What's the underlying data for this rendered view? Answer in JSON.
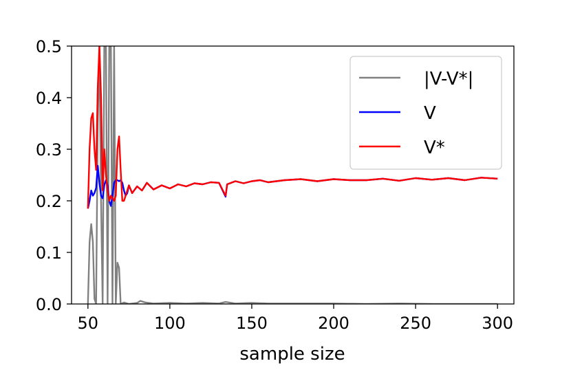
{
  "chart_data": {
    "type": "line",
    "title": "",
    "xlabel": "sample size",
    "ylabel": "",
    "xlim": [
      40,
      310
    ],
    "ylim": [
      0,
      0.5
    ],
    "xticks": [
      50,
      100,
      150,
      200,
      250,
      300
    ],
    "yticks": [
      0.0,
      0.1,
      0.2,
      0.3,
      0.4,
      0.5
    ],
    "xtick_labels": [
      "50",
      "100",
      "150",
      "200",
      "250",
      "300"
    ],
    "ytick_labels": [
      "0.0",
      "0.1",
      "0.2",
      "0.3",
      "0.4",
      "0.5"
    ],
    "grid": false,
    "legend_position": "top-right",
    "series": [
      {
        "name": "|V-V*|",
        "color": "#808080",
        "x": [
          50,
          51,
          52,
          53,
          54,
          55,
          56,
          57,
          58,
          59,
          60,
          61,
          62,
          63,
          64,
          65,
          66,
          67,
          68,
          69,
          70,
          72,
          75,
          80,
          82,
          85,
          90,
          100,
          110,
          120,
          130,
          134,
          140,
          150,
          160,
          170,
          180,
          190,
          200,
          220,
          240,
          260,
          280,
          300
        ],
        "values": [
          0.0,
          0.12,
          0.155,
          0.12,
          0.01,
          0.0,
          0.35,
          0.5,
          0.2,
          0.0,
          0.5,
          0.5,
          0.0,
          0.5,
          0.5,
          0.0,
          0.5,
          0.0,
          0.08,
          0.07,
          0.0,
          0.003,
          0.0,
          0.002,
          0.006,
          0.003,
          0.001,
          0.002,
          0.001,
          0.002,
          0.001,
          0.004,
          0.001,
          0.002,
          0.001,
          0.001,
          0.001,
          0.001,
          0.001,
          0.0,
          0.001,
          0.0,
          0.0,
          0.0
        ]
      },
      {
        "name": "V",
        "color": "#0000ff",
        "x": [
          50,
          51,
          52,
          53,
          54,
          55,
          56,
          57,
          58,
          59,
          60,
          61,
          62,
          63,
          64,
          65,
          66,
          67,
          68,
          69,
          70,
          71,
          72,
          73,
          74,
          75,
          77,
          80,
          83,
          86,
          90,
          95,
          100,
          105,
          110,
          115,
          120,
          125,
          130,
          134,
          135,
          140,
          145,
          150,
          155,
          160,
          170,
          180,
          190,
          200,
          210,
          220,
          230,
          240,
          250,
          260,
          270,
          280,
          290,
          300
        ],
        "values": [
          0.185,
          0.2,
          0.22,
          0.21,
          0.215,
          0.225,
          0.268,
          0.235,
          0.21,
          0.205,
          0.23,
          0.24,
          0.23,
          0.2,
          0.19,
          0.21,
          0.235,
          0.24,
          0.24,
          0.238,
          0.24,
          0.235,
          0.22,
          0.21,
          0.215,
          0.23,
          0.215,
          0.228,
          0.22,
          0.235,
          0.222,
          0.23,
          0.224,
          0.232,
          0.228,
          0.234,
          0.232,
          0.236,
          0.235,
          0.208,
          0.232,
          0.238,
          0.234,
          0.238,
          0.24,
          0.236,
          0.24,
          0.242,
          0.238,
          0.242,
          0.24,
          0.24,
          0.243,
          0.239,
          0.244,
          0.241,
          0.244,
          0.24,
          0.245,
          0.243
        ]
      },
      {
        "name": "V*",
        "color": "#ff0000",
        "x": [
          50,
          51,
          52,
          53,
          54,
          55,
          56,
          57,
          58,
          59,
          60,
          61,
          62,
          63,
          64,
          65,
          66,
          67,
          68,
          69,
          70,
          71,
          72,
          73,
          74,
          75,
          77,
          80,
          83,
          86,
          90,
          95,
          100,
          105,
          110,
          115,
          120,
          125,
          130,
          134,
          135,
          140,
          145,
          150,
          155,
          160,
          170,
          180,
          190,
          200,
          210,
          220,
          230,
          240,
          250,
          260,
          270,
          280,
          290,
          300
        ],
        "values": [
          0.185,
          0.3,
          0.36,
          0.37,
          0.3,
          0.26,
          0.42,
          0.5,
          0.4,
          0.22,
          0.3,
          0.25,
          0.22,
          0.2,
          0.21,
          0.205,
          0.2,
          0.21,
          0.3,
          0.325,
          0.26,
          0.2,
          0.2,
          0.21,
          0.22,
          0.23,
          0.215,
          0.228,
          0.22,
          0.235,
          0.222,
          0.23,
          0.224,
          0.232,
          0.228,
          0.234,
          0.232,
          0.236,
          0.235,
          0.21,
          0.232,
          0.238,
          0.234,
          0.238,
          0.24,
          0.236,
          0.24,
          0.242,
          0.238,
          0.242,
          0.24,
          0.24,
          0.243,
          0.239,
          0.244,
          0.241,
          0.244,
          0.24,
          0.245,
          0.243
        ]
      }
    ]
  }
}
